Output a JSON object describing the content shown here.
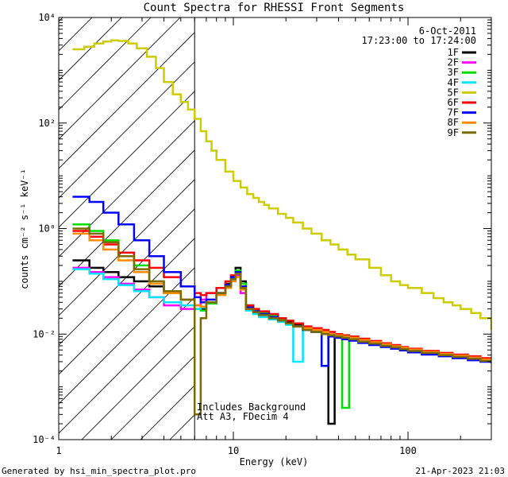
{
  "chart_data": {
    "type": "line",
    "title": "Count Spectra for RHESSI Front Segments",
    "xlabel": "Energy (keV)",
    "ylabel": "counts cm⁻² s⁻¹ keV⁻¹",
    "xscale": "log",
    "yscale": "log",
    "xlim": [
      1,
      300
    ],
    "ylim": [
      0.0001,
      10000
    ],
    "x_ticks": [
      {
        "value": 1,
        "label": "1"
      },
      {
        "value": 10,
        "label": "10"
      },
      {
        "value": 100,
        "label": "100"
      }
    ],
    "y_ticks": [
      {
        "value": 0.0001,
        "label": "10⁻⁴"
      },
      {
        "value": 0.01,
        "label": "10⁻²"
      },
      {
        "value": 1,
        "label": "10⁰"
      },
      {
        "value": 100,
        "label": "10²"
      },
      {
        "value": 10000,
        "label": "10⁴"
      }
    ],
    "date": "6-Oct-2011",
    "time_range": "17:23:00 to 17:24:00",
    "legend_position": "top-right",
    "hatched_region_keV": [
      1,
      6
    ],
    "annotation_lines": [
      "Includes Background",
      "Att A3, FDecim 4"
    ],
    "series": [
      {
        "name": "1F",
        "color": "#000000",
        "x": [
          1.2,
          1.5,
          1.8,
          2.2,
          2.7,
          3.3,
          4,
          5,
          6,
          6.5,
          7,
          8,
          9,
          9.7,
          10.3,
          11,
          11.8,
          13,
          14,
          16,
          18,
          20,
          22,
          25,
          28,
          32,
          35,
          38,
          42,
          46,
          52,
          60,
          70,
          80,
          90,
          100,
          120,
          150,
          180,
          220,
          260,
          300
        ],
        "y": [
          0.25,
          0.18,
          0.15,
          0.12,
          0.1,
          0.08,
          0.06,
          0.045,
          0.035,
          0.03,
          0.04,
          0.06,
          0.09,
          0.13,
          0.18,
          0.1,
          0.035,
          0.028,
          0.025,
          0.022,
          0.019,
          0.017,
          0.015,
          0.013,
          0.012,
          0.011,
          0.0002,
          0.009,
          0.0085,
          0.008,
          0.0072,
          0.0065,
          0.006,
          0.0056,
          0.0052,
          0.0048,
          0.0044,
          0.0041,
          0.0038,
          0.0035,
          0.0032,
          0.003
        ]
      },
      {
        "name": "2F",
        "color": "#ff00ff",
        "x": [
          1.2,
          1.5,
          1.8,
          2.2,
          2.7,
          3.3,
          4,
          5,
          6,
          6.5,
          7,
          8,
          9,
          9.7,
          10.3,
          11,
          11.8,
          13,
          14,
          16,
          18,
          20,
          22,
          25,
          28,
          32,
          35,
          38,
          42,
          46,
          52,
          60,
          70,
          80,
          90,
          100,
          120,
          150,
          180,
          220,
          260,
          300
        ],
        "y": [
          0.18,
          0.15,
          0.12,
          0.09,
          0.07,
          0.05,
          0.035,
          0.03,
          0.035,
          0.045,
          0.06,
          0.075,
          0.08,
          0.11,
          0.13,
          0.06,
          0.03,
          0.025,
          0.022,
          0.02,
          0.018,
          0.016,
          0.014,
          0.012,
          0.011,
          0.01,
          0.0095,
          0.009,
          0.0085,
          0.008,
          0.0072,
          0.0065,
          0.006,
          0.0055,
          0.0051,
          0.0047,
          0.0043,
          0.004,
          0.0037,
          0.0034,
          0.0031,
          0.0029
        ]
      },
      {
        "name": "3F",
        "color": "#00dd00",
        "x": [
          1.2,
          1.5,
          1.8,
          2.2,
          2.7,
          3.3,
          4,
          5,
          6,
          6.5,
          7,
          8,
          9,
          9.7,
          10.3,
          11,
          11.8,
          13,
          14,
          16,
          18,
          20,
          22,
          25,
          28,
          32,
          35,
          38,
          42,
          46,
          52,
          60,
          70,
          80,
          90,
          100,
          120,
          150,
          180,
          220,
          260,
          300
        ],
        "y": [
          1.2,
          0.9,
          0.6,
          0.35,
          0.2,
          0.1,
          0.06,
          0.045,
          0.03,
          0.028,
          0.038,
          0.06,
          0.085,
          0.12,
          0.16,
          0.09,
          0.035,
          0.028,
          0.025,
          0.022,
          0.019,
          0.016,
          0.014,
          0.012,
          0.011,
          0.01,
          0.009,
          0.0087,
          0.0004,
          0.0078,
          0.007,
          0.0064,
          0.0059,
          0.0055,
          0.0051,
          0.0047,
          0.0043,
          0.004,
          0.0037,
          0.0034,
          0.0031,
          0.0029
        ]
      },
      {
        "name": "4F",
        "color": "#00e5ff",
        "x": [
          1.2,
          1.5,
          1.8,
          2.2,
          2.7,
          3.3,
          4,
          5,
          6,
          6.5,
          7,
          8,
          9,
          9.7,
          10.3,
          11,
          11.8,
          13,
          14,
          16,
          18,
          20,
          22,
          25,
          28,
          32,
          35,
          38,
          42,
          46,
          52,
          60,
          70,
          80,
          90,
          100,
          120,
          150,
          180,
          220,
          260,
          300
        ],
        "y": [
          0.17,
          0.14,
          0.11,
          0.085,
          0.065,
          0.05,
          0.04,
          0.035,
          0.03,
          0.032,
          0.04,
          0.055,
          0.075,
          0.1,
          0.12,
          0.07,
          0.028,
          0.024,
          0.021,
          0.019,
          0.017,
          0.015,
          0.003,
          0.012,
          0.011,
          0.01,
          0.0093,
          0.0088,
          0.0083,
          0.0079,
          0.0071,
          0.0064,
          0.0059,
          0.0055,
          0.0051,
          0.0047,
          0.0043,
          0.004,
          0.0037,
          0.0034,
          0.0031,
          0.0028
        ]
      },
      {
        "name": "5F",
        "color": "#cccc00",
        "x": [
          1.2,
          1.4,
          1.6,
          1.8,
          2.0,
          2.2,
          2.5,
          2.8,
          3.2,
          3.6,
          4,
          4.5,
          5,
          5.5,
          6,
          6.5,
          7,
          7.5,
          8,
          9,
          10,
          11,
          12,
          13,
          14,
          15,
          16,
          18,
          20,
          22,
          25,
          28,
          32,
          36,
          40,
          45,
          50,
          60,
          70,
          80,
          90,
          100,
          120,
          140,
          160,
          180,
          200,
          230,
          260,
          300
        ],
        "y": [
          2500,
          2800,
          3200,
          3500,
          3700,
          3600,
          3200,
          2600,
          1800,
          1100,
          600,
          350,
          250,
          180,
          120,
          70,
          45,
          30,
          20,
          12,
          8,
          6,
          4.5,
          3.8,
          3.2,
          2.8,
          2.4,
          1.9,
          1.6,
          1.3,
          1.0,
          0.8,
          0.6,
          0.5,
          0.4,
          0.32,
          0.26,
          0.18,
          0.13,
          0.1,
          0.085,
          0.075,
          0.06,
          0.048,
          0.04,
          0.035,
          0.03,
          0.025,
          0.02,
          0.012
        ]
      },
      {
        "name": "6F",
        "color": "#ff0000",
        "x": [
          1.2,
          1.5,
          1.8,
          2.2,
          2.7,
          3.3,
          4,
          5,
          6,
          6.5,
          7,
          8,
          9,
          9.7,
          10.3,
          11,
          11.8,
          13,
          14,
          16,
          18,
          20,
          22,
          25,
          28,
          32,
          35,
          38,
          42,
          46,
          52,
          60,
          70,
          80,
          90,
          100,
          120,
          150,
          180,
          220,
          260,
          300
        ],
        "y": [
          0.9,
          0.7,
          0.5,
          0.35,
          0.25,
          0.18,
          0.12,
          0.08,
          0.06,
          0.055,
          0.06,
          0.075,
          0.1,
          0.13,
          0.15,
          0.08,
          0.035,
          0.03,
          0.027,
          0.024,
          0.02,
          0.018,
          0.016,
          0.014,
          0.013,
          0.012,
          0.011,
          0.01,
          0.0095,
          0.009,
          0.0082,
          0.0074,
          0.0067,
          0.0062,
          0.0057,
          0.0053,
          0.0048,
          0.0044,
          0.0041,
          0.0038,
          0.0035,
          0.0032
        ]
      },
      {
        "name": "7F",
        "color": "#0000ff",
        "x": [
          1.2,
          1.5,
          1.8,
          2.2,
          2.7,
          3.3,
          4,
          5,
          6,
          6.5,
          7,
          8,
          9,
          9.7,
          10.3,
          11,
          11.8,
          13,
          14,
          16,
          18,
          20,
          22,
          25,
          28,
          32,
          35,
          38,
          42,
          46,
          52,
          60,
          70,
          80,
          90,
          100,
          120,
          150,
          180,
          220,
          260,
          300
        ],
        "y": [
          4,
          3.2,
          2,
          1.2,
          0.6,
          0.3,
          0.15,
          0.08,
          0.05,
          0.04,
          0.045,
          0.06,
          0.085,
          0.12,
          0.15,
          0.08,
          0.032,
          0.027,
          0.024,
          0.021,
          0.018,
          0.016,
          0.014,
          0.012,
          0.011,
          0.0025,
          0.009,
          0.0085,
          0.008,
          0.0075,
          0.0068,
          0.0062,
          0.0057,
          0.0053,
          0.0049,
          0.0045,
          0.0041,
          0.0038,
          0.0035,
          0.0032,
          0.003,
          0.0028
        ]
      },
      {
        "name": "8F",
        "color": "#ff8c00",
        "x": [
          1.2,
          1.5,
          1.8,
          2.2,
          2.7,
          3.3,
          4,
          5,
          6,
          6.5,
          7,
          8,
          9,
          9.7,
          10.3,
          11,
          11.8,
          13,
          14,
          16,
          18,
          20,
          22,
          25,
          28,
          32,
          35,
          38,
          42,
          46,
          52,
          60,
          70,
          80,
          90,
          100,
          120,
          150,
          180,
          220,
          260,
          300
        ],
        "y": [
          0.8,
          0.6,
          0.4,
          0.25,
          0.15,
          0.09,
          0.06,
          0.045,
          0.035,
          0.033,
          0.04,
          0.055,
          0.075,
          0.1,
          0.12,
          0.07,
          0.03,
          0.026,
          0.023,
          0.02,
          0.018,
          0.016,
          0.014,
          0.013,
          0.012,
          0.011,
          0.01,
          0.0095,
          0.009,
          0.0085,
          0.0077,
          0.007,
          0.0064,
          0.0059,
          0.0055,
          0.0051,
          0.0046,
          0.0042,
          0.0039,
          0.0036,
          0.0033,
          0.003
        ]
      },
      {
        "name": "9F",
        "color": "#7a6a00",
        "x": [
          1.2,
          1.5,
          1.8,
          2.2,
          2.7,
          3.3,
          4,
          5,
          6,
          6.5,
          7,
          8,
          9,
          9.7,
          10.3,
          11,
          11.8,
          13,
          14,
          16,
          18,
          20,
          22,
          25,
          28,
          32,
          35,
          38,
          42,
          46,
          52,
          60,
          70,
          80,
          90,
          100,
          120,
          150,
          180,
          220,
          260,
          300
        ],
        "y": [
          1.0,
          0.8,
          0.55,
          0.3,
          0.17,
          0.1,
          0.065,
          0.045,
          0.0003,
          0.02,
          0.04,
          0.06,
          0.08,
          0.11,
          0.14,
          0.075,
          0.03,
          0.026,
          0.023,
          0.02,
          0.018,
          0.016,
          0.014,
          0.012,
          0.011,
          0.01,
          0.0095,
          0.009,
          0.0085,
          0.008,
          0.0072,
          0.0066,
          0.006,
          0.0056,
          0.0052,
          0.0048,
          0.0044,
          0.004,
          0.0037,
          0.0034,
          0.0031,
          0.0029
        ]
      }
    ]
  },
  "footer": {
    "left": "Generated by hsi_min_spectra_plot.pro",
    "right": "21-Apr-2023 21:03"
  }
}
